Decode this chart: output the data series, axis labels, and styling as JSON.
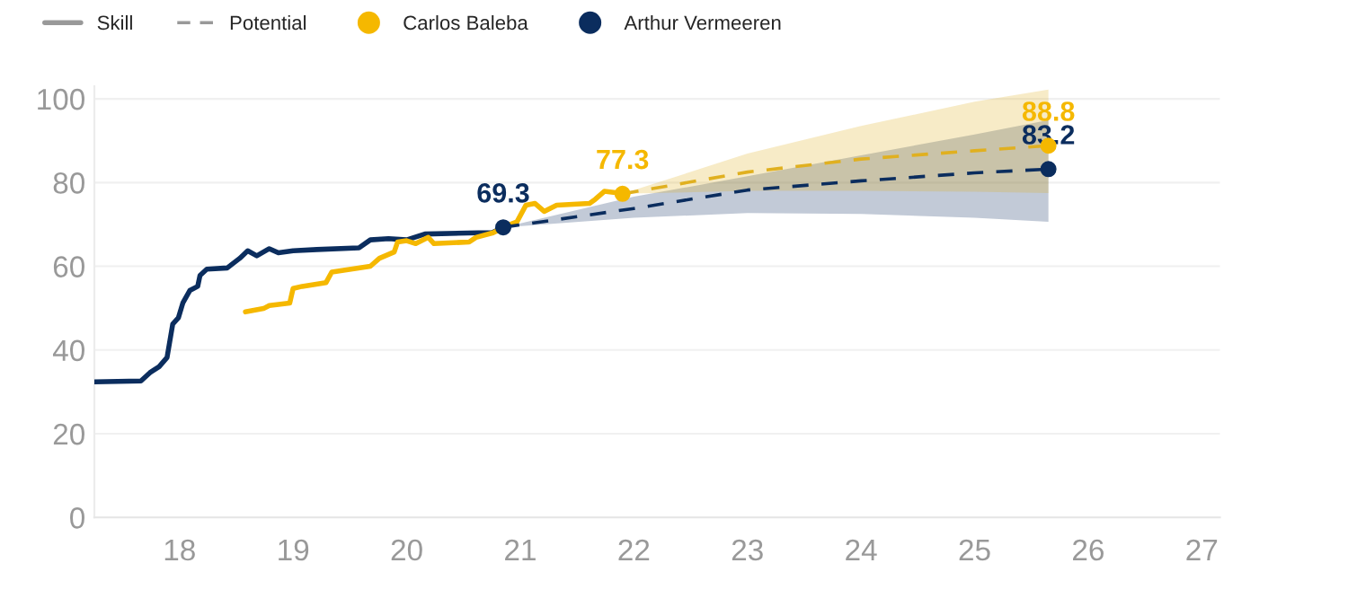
{
  "chart_data": {
    "type": "line",
    "xlim": [
      17.25,
      27.16
    ],
    "ylim": [
      0,
      103
    ],
    "xticks": [
      18,
      19,
      20,
      21,
      22,
      23,
      24,
      25,
      26,
      27
    ],
    "yticks": [
      0,
      20,
      40,
      60,
      80,
      100
    ],
    "grid": "y",
    "legend": "top left",
    "annotations": [
      "Skill",
      "Potential"
    ],
    "series": [
      {
        "color": "#0b2d5e",
        "line_style": "solid",
        "x": [
          17.25,
          17.66,
          17.74,
          17.82,
          17.89,
          17.94,
          17.99,
          18.03,
          18.09,
          18.16,
          18.18,
          18.24,
          18.42,
          18.53,
          18.6,
          18.68,
          18.79,
          18.87,
          19.0,
          19.21,
          19.58,
          19.68,
          19.84,
          20.0,
          20.16,
          20.63,
          20.75,
          20.85
        ],
        "values": [
          32.4,
          32.6,
          34.6,
          36,
          38.2,
          46.2,
          47.7,
          51.3,
          54.2,
          55.2,
          57.8,
          59.3,
          59.6,
          61.9,
          63.7,
          62.5,
          64.2,
          63.2,
          63.7,
          64,
          64.4,
          66.3,
          66.6,
          66.3,
          67.7,
          68,
          68,
          69.3
        ]
      },
      {
        "color": "#f5b800",
        "line_style": "solid",
        "x": [
          18.58,
          18.74,
          18.79,
          18.97,
          19.0,
          19.08,
          19.29,
          19.34,
          19.68,
          19.76,
          19.89,
          19.92,
          20.0,
          20.08,
          20.19,
          20.24,
          20.55,
          20.61,
          20.76,
          20.89,
          20.97,
          21.05,
          21.13,
          21.21,
          21.32,
          21.61,
          21.66,
          21.74,
          21.87,
          21.9
        ],
        "values": [
          49.1,
          49.9,
          50.6,
          51.2,
          54.7,
          55.2,
          56.1,
          58.6,
          60,
          61.9,
          63.4,
          65.8,
          66.1,
          65.4,
          66.9,
          65.4,
          65.8,
          66.9,
          68,
          69.8,
          70.6,
          74.6,
          75,
          73.1,
          74.6,
          75,
          76,
          77.9,
          77.5,
          77.3
        ]
      },
      {
        "color": "#0b2d5e",
        "line_style": "dashed",
        "x": [
          20.85,
          22,
          23,
          24,
          25,
          25.65
        ],
        "values": [
          69.3,
          73.8,
          78.2,
          80.4,
          82.3,
          83.2
        ],
        "lower": [
          69.3,
          71.6,
          72.7,
          72.5,
          71.6,
          70.6
        ],
        "upper": [
          69.3,
          76.6,
          81.5,
          86.5,
          91.5,
          94.9
        ]
      },
      {
        "color": "#e0b020",
        "line_style": "dashed",
        "x": [
          21.9,
          23,
          24,
          25,
          25.65
        ],
        "values": [
          77.3,
          82.5,
          85.6,
          87.6,
          88.8
        ],
        "lower": [
          77.3,
          78,
          78,
          77.8,
          77.5
        ],
        "upper": [
          77.3,
          86.9,
          93.5,
          99.3,
          102.2
        ]
      },
      {
        "type": "scatter",
        "name": "Carlos Baleba",
        "color": "#f5b800",
        "x": [
          21.9,
          25.65
        ],
        "values": [
          77.3,
          88.8
        ],
        "value_labels": [
          "77.3",
          "88.8"
        ]
      },
      {
        "type": "scatter",
        "name": "Arthur Vermeeren",
        "color": "#0b2d5e",
        "x": [
          20.85,
          25.65
        ],
        "values": [
          69.3,
          83.2
        ],
        "value_labels": [
          "69.3",
          "83.2"
        ]
      }
    ]
  }
}
